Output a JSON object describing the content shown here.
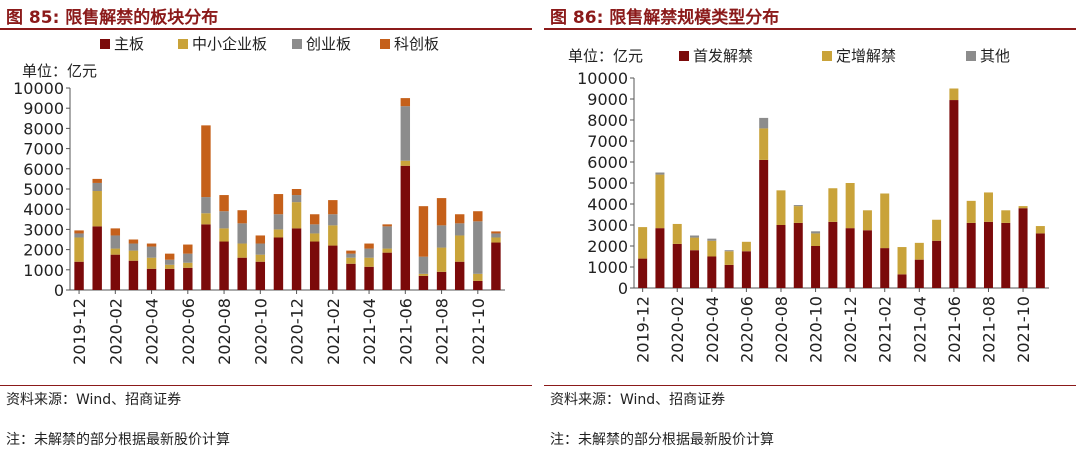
{
  "charts": [
    {
      "title": "图 85:  限售解禁的板块分布",
      "source": "资料来源：Wind、招商证券",
      "note": "注：未解禁的部分根据最新股价计算",
      "chart_data": {
        "type": "bar",
        "stacked": true,
        "unit_label": "单位：亿元",
        "ylim": [
          0,
          10000
        ],
        "yticks": [
          0,
          1000,
          2000,
          3000,
          4000,
          5000,
          6000,
          7000,
          8000,
          9000,
          10000
        ],
        "tick_labels": [
          "2019-12",
          "2020-02",
          "2020-04",
          "2020-06",
          "2020-08",
          "2020-10",
          "2020-12",
          "2021-02",
          "2021-04",
          "2021-06",
          "2021-08",
          "2021-10"
        ],
        "categories": [
          "2019-12",
          "2020-01",
          "2020-02",
          "2020-03",
          "2020-04",
          "2020-05",
          "2020-06",
          "2020-07",
          "2020-08",
          "2020-09",
          "2020-10",
          "2020-11",
          "2020-12",
          "2021-01",
          "2021-02",
          "2021-03",
          "2021-04",
          "2021-05",
          "2021-06",
          "2021-07",
          "2021-08",
          "2021-09",
          "2021-10",
          "2021-11"
        ],
        "series": [
          {
            "name": "主板",
            "color": "#7b0a0a",
            "values": [
              1400,
              3150,
              1750,
              1450,
              1050,
              1050,
              1100,
              3250,
              2400,
              1600,
              1400,
              2600,
              3050,
              2400,
              2200,
              1300,
              1150,
              1850,
              6150,
              700,
              900,
              1400,
              450,
              2350
            ]
          },
          {
            "name": "中小企业板",
            "color": "#c9a33a",
            "values": [
              1200,
              1750,
              300,
              500,
              550,
              200,
              250,
              550,
              650,
              700,
              350,
              400,
              1300,
              400,
              1000,
              300,
              450,
              200,
              250,
              100,
              1200,
              1300,
              350,
              250
            ]
          },
          {
            "name": "创业板",
            "color": "#8c8c8c",
            "values": [
              200,
              400,
              650,
              350,
              550,
              250,
              450,
              800,
              850,
              1000,
              550,
              750,
              350,
              450,
              550,
              200,
              450,
              1100,
              2700,
              850,
              1100,
              600,
              2600,
              200
            ]
          },
          {
            "name": "科创板",
            "color": "#c5601a",
            "values": [
              150,
              200,
              350,
              200,
              150,
              300,
              450,
              3550,
              800,
              650,
              400,
              1000,
              300,
              500,
              700,
              150,
              250,
              100,
              400,
              2500,
              1350,
              450,
              500,
              100
            ]
          }
        ]
      }
    },
    {
      "title": "图 86:  限售解禁规模类型分布",
      "source": "资料来源：Wind、招商证券",
      "note": "注：未解禁的部分根据最新股价计算",
      "chart_data": {
        "type": "bar",
        "stacked": true,
        "unit_label": "单位：亿元",
        "ylim": [
          0,
          10000
        ],
        "yticks": [
          0,
          1000,
          2000,
          3000,
          4000,
          5000,
          6000,
          7000,
          8000,
          9000,
          10000
        ],
        "tick_labels": [
          "2019-12",
          "2020-02",
          "2020-04",
          "2020-06",
          "2020-08",
          "2020-10",
          "2020-12",
          "2021-02",
          "2021-04",
          "2021-06",
          "2021-08",
          "2021-10"
        ],
        "categories": [
          "2019-12",
          "2020-01",
          "2020-02",
          "2020-03",
          "2020-04",
          "2020-05",
          "2020-06",
          "2020-07",
          "2020-08",
          "2020-09",
          "2020-10",
          "2020-11",
          "2020-12",
          "2021-01",
          "2021-02",
          "2021-03",
          "2021-04",
          "2021-05",
          "2021-06",
          "2021-07",
          "2021-08",
          "2021-09",
          "2021-10",
          "2021-11"
        ],
        "series": [
          {
            "name": "首发解禁",
            "color": "#7b0a0a",
            "values": [
              1400,
              2850,
              2100,
              1800,
              1500,
              1100,
              1750,
              6100,
              3000,
              3100,
              2000,
              3150,
              2850,
              2750,
              1900,
              650,
              1350,
              2250,
              8950,
              3100,
              3150,
              3100,
              3800,
              2600
            ]
          },
          {
            "name": "定增解禁",
            "color": "#c9a33a",
            "values": [
              1500,
              2550,
              950,
              600,
              750,
              650,
              450,
              1500,
              1650,
              800,
              600,
              1600,
              2150,
              950,
              2600,
              1300,
              800,
              1000,
              550,
              1050,
              1400,
              600,
              100,
              350
            ]
          },
          {
            "name": "其他",
            "color": "#8c8c8c",
            "values": [
              0,
              100,
              0,
              100,
              100,
              50,
              0,
              500,
              0,
              50,
              100,
              0,
              0,
              0,
              0,
              0,
              0,
              0,
              0,
              0,
              0,
              0,
              0,
              0
            ]
          }
        ]
      }
    }
  ]
}
